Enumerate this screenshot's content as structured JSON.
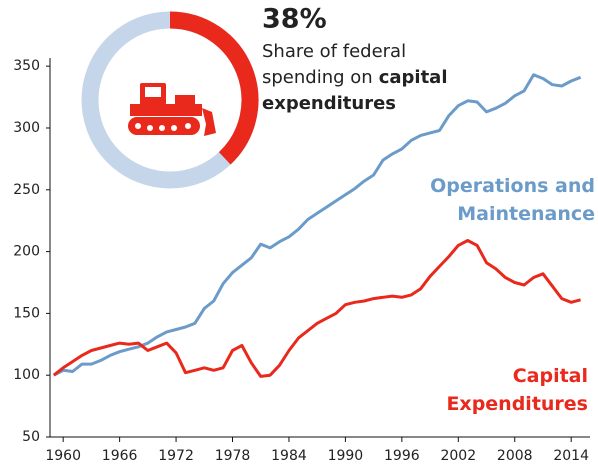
{
  "chart_data": [
    {
      "type": "line",
      "x": [
        1959,
        1960,
        1961,
        1962,
        1963,
        1964,
        1965,
        1966,
        1967,
        1968,
        1969,
        1970,
        1971,
        1972,
        1973,
        1974,
        1975,
        1976,
        1977,
        1978,
        1979,
        1980,
        1981,
        1982,
        1983,
        1984,
        1985,
        1986,
        1987,
        1988,
        1989,
        1990,
        1991,
        1992,
        1993,
        1994,
        1995,
        1996,
        1997,
        1998,
        1999,
        2000,
        2001,
        2002,
        2003,
        2004,
        2005,
        2006,
        2007,
        2008,
        2009,
        2010,
        2011,
        2012,
        2013,
        2014,
        2015
      ],
      "series": [
        {
          "name": "Operations and Maintenance",
          "color": "#6b9bc9",
          "values": [
            100,
            104,
            103,
            109,
            109,
            112,
            116,
            119,
            121,
            123,
            126,
            131,
            135,
            137,
            139,
            142,
            154,
            160,
            174,
            183,
            189,
            195,
            206,
            203,
            208,
            212,
            218,
            226,
            231,
            236,
            241,
            246,
            251,
            257,
            262,
            274,
            279,
            283,
            290,
            294,
            296,
            298,
            310,
            318,
            322,
            321,
            313,
            316,
            320,
            326,
            330,
            343,
            340,
            335,
            334,
            338,
            341
          ]
        },
        {
          "name": "Capital Expenditures",
          "color": "#e8291c",
          "values": [
            100,
            106,
            111,
            116,
            120,
            122,
            124,
            126,
            125,
            126,
            120,
            123,
            126,
            118,
            102,
            104,
            106,
            104,
            106,
            120,
            124,
            110,
            99,
            100,
            108,
            120,
            130,
            136,
            142,
            146,
            150,
            157,
            159,
            160,
            162,
            163,
            164,
            163,
            165,
            170,
            180,
            188,
            196,
            205,
            209,
            205,
            191,
            186,
            179,
            175,
            173,
            179,
            182,
            172,
            162,
            159,
            161
          ]
        }
      ],
      "xlim": [
        1958.6,
        2016
      ],
      "xticks": [
        1960,
        1966,
        1972,
        1978,
        1984,
        1990,
        1996,
        2002,
        2008,
        2014
      ],
      "ylim": [
        50,
        355
      ],
      "yticks": [
        50,
        100,
        150,
        200,
        250,
        300,
        350
      ]
    },
    {
      "type": "donut",
      "values": [
        38
      ],
      "value_labels": [
        "38%"
      ],
      "color": "#e8291c",
      "track_color": "#c5d5ea",
      "caption": [
        "Share of federal",
        "spending on",
        "capital",
        "expenditures"
      ],
      "caption_bold": [
        false,
        false,
        true,
        true
      ]
    }
  ]
}
